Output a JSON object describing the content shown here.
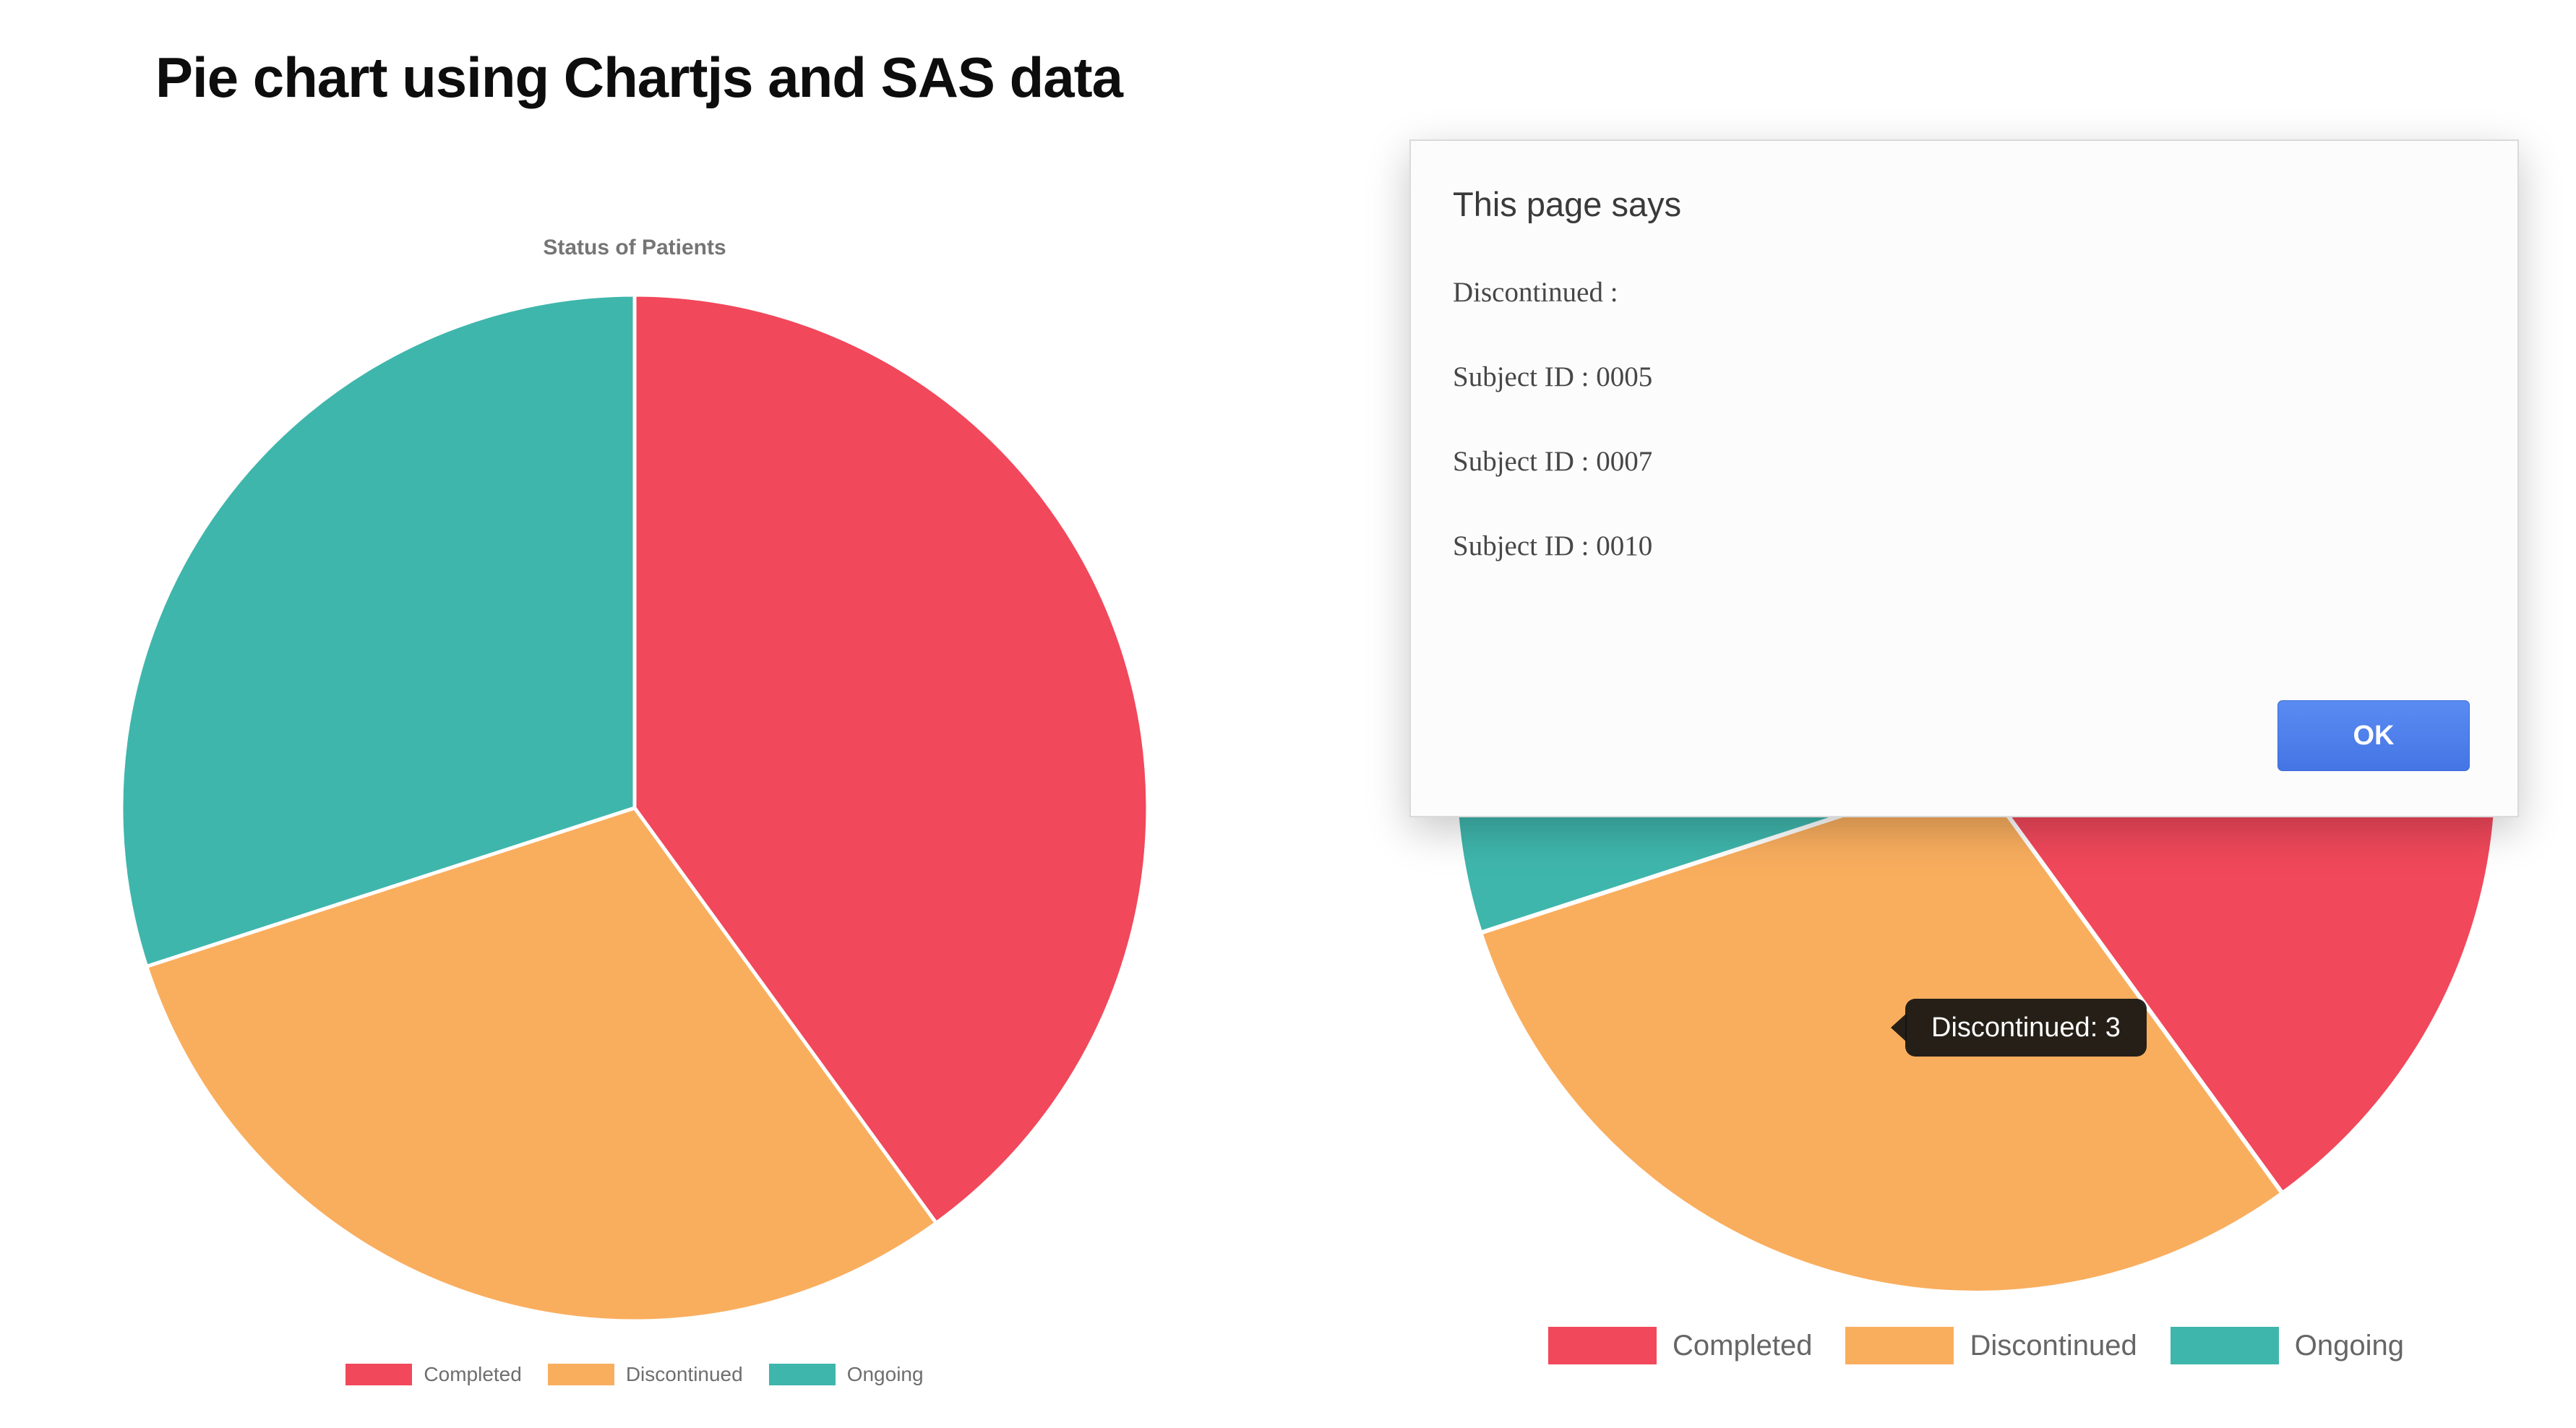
{
  "page": {
    "title": "Pie chart using Chartjs and SAS data"
  },
  "chart_data": [
    {
      "type": "pie",
      "title": "Status of Patients",
      "categories": [
        "Completed",
        "Discontinued",
        "Ongoing"
      ],
      "values": [
        4,
        3,
        3
      ],
      "colors": [
        "#F1485B",
        "#F9AE5E",
        "#3FB6AC"
      ],
      "start_angle_deg": 0,
      "legend_position": "bottom"
    },
    {
      "type": "pie",
      "title": "",
      "categories": [
        "Completed",
        "Discontinued",
        "Ongoing"
      ],
      "values": [
        4,
        3,
        3
      ],
      "colors": [
        "#F1485B",
        "#F9AE5E",
        "#3FB6AC"
      ],
      "start_angle_deg": 0,
      "legend_position": "bottom",
      "tooltip": "Discontinued: 3"
    }
  ],
  "tooltip": {
    "label": "Discontinued: 3"
  },
  "dialog": {
    "title": "This page says",
    "lines": [
      "Discontinued :",
      "Subject ID : 0005",
      "Subject ID : 0007",
      "Subject ID : 0010"
    ],
    "ok_label": "OK"
  },
  "colors": {
    "completed": "#F1485B",
    "discontinued": "#F9AE5E",
    "ongoing": "#3FB6AC",
    "ok_button": "#4C7EE8",
    "tooltip_bg": "#121212",
    "legend_text": "#6E6E6E"
  }
}
